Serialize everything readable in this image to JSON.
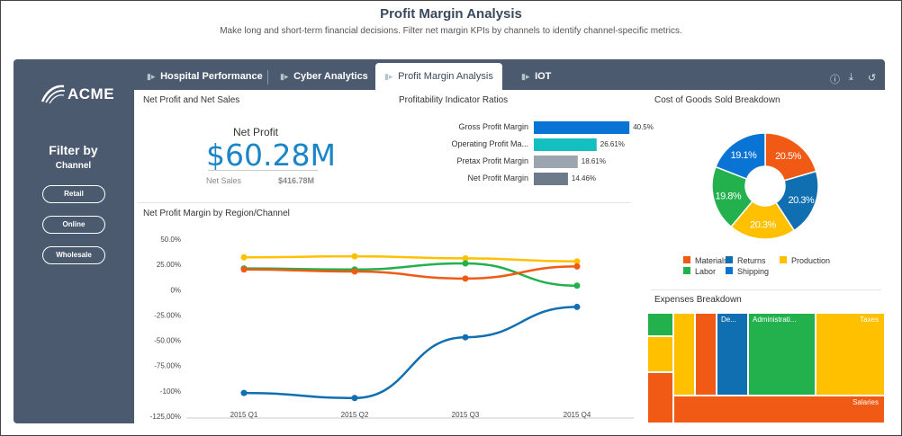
{
  "page": {
    "title": "Profit Margin Analysis",
    "subtitle": "Make long and short-term financial decisions. Filter net margin KPIs by channels to identify channel-specific metrics."
  },
  "sidebar": {
    "logo": "ACME",
    "filter_title": "Filter by",
    "filter_subtitle": "Channel",
    "buttons": [
      "Retail",
      "Online",
      "Wholesale"
    ]
  },
  "tabs": [
    {
      "label": "Hospital Performance",
      "active": false
    },
    {
      "label": "Cyber Analytics",
      "active": false
    },
    {
      "label": "Profit Margin Analysis",
      "active": true
    },
    {
      "label": "IOT",
      "active": false
    }
  ],
  "toolbar": {
    "icons": [
      "info-icon",
      "download-icon",
      "reset-icon"
    ],
    "info": "ⓘ",
    "download": "⤓",
    "reset": "↺"
  },
  "net_profit_panel": {
    "title": "Net Profit and Net Sales",
    "kpi_label": "Net Profit",
    "kpi_value": "$60.28M",
    "sales_label": "Net Sales",
    "sales_value": "$416.78M"
  },
  "ratios_panel": {
    "title": "Profitability Indicator Ratios"
  },
  "region_panel": {
    "title": "Net Profit Margin by Region/Channel"
  },
  "cogs_panel": {
    "title": "Cost of Goods Sold Breakdown"
  },
  "expenses_panel": {
    "title": "Expenses Breakdown"
  },
  "colors": {
    "orange": "#f05a14",
    "blue": "#0f6fb0",
    "yellow": "#ffc000",
    "green": "#22b14c",
    "teal": "#14bfc0",
    "gray": "#9ba5b0",
    "slate": "#6d7a8a",
    "brightblue": "#0a74d4",
    "sidebar": "#4b5a6e"
  },
  "chart_data": [
    {
      "type": "bar",
      "orientation": "horizontal",
      "categories": [
        "Gross Profit Margin",
        "Operating Profit Ma...",
        "Pretax Profit Margin",
        "Net Profit Margin"
      ],
      "values": [
        40.5,
        26.61,
        18.61,
        14.46
      ],
      "labels": [
        "40.5%",
        "26.61%",
        "18.61%",
        "14.46%"
      ],
      "colors": [
        "#0a74d4",
        "#14bfc0",
        "#9ba5b0",
        "#6d7a8a"
      ],
      "xlim": [
        0,
        45
      ]
    },
    {
      "type": "pie",
      "donut": true,
      "slices": [
        {
          "name": "Materials",
          "value": 20.5,
          "label": "20.5%",
          "color": "#f05a14"
        },
        {
          "name": "Returns",
          "value": 20.3,
          "label": "20.3%",
          "color": "#0f6fb0"
        },
        {
          "name": "Production",
          "value": 20.3,
          "label": "20.3%",
          "color": "#ffc000"
        },
        {
          "name": "Labor",
          "value": 19.8,
          "label": "19.8%",
          "color": "#22b14c"
        },
        {
          "name": "Shipping",
          "value": 19.1,
          "label": "19.1%",
          "color": "#0a74d4"
        }
      ],
      "legend": "bottom"
    },
    {
      "type": "line",
      "categories": [
        "2015 Q1",
        "2015 Q2",
        "2015 Q3",
        "2015 Q4"
      ],
      "y_ticks": [
        "50.0%",
        "25.00%",
        "0%",
        "-25.00%",
        "-50.00%",
        "-75.00%",
        "-100%",
        "-125,00%"
      ],
      "ylim": [
        -125,
        50
      ],
      "series": [
        {
          "color": "#ffc000",
          "values": [
            32,
            33,
            31,
            28
          ]
        },
        {
          "color": "#22b14c",
          "values": [
            21,
            20,
            26,
            4
          ]
        },
        {
          "color": "#f05a14",
          "values": [
            20,
            18,
            11,
            23
          ]
        },
        {
          "color": "#0f6fb0",
          "values": [
            -102,
            -107,
            -47,
            -17
          ]
        }
      ],
      "grid": false
    },
    {
      "type": "treemap",
      "labels": [
        "De...",
        "Administrati...",
        "Taxes",
        "Salaries"
      ]
    }
  ]
}
